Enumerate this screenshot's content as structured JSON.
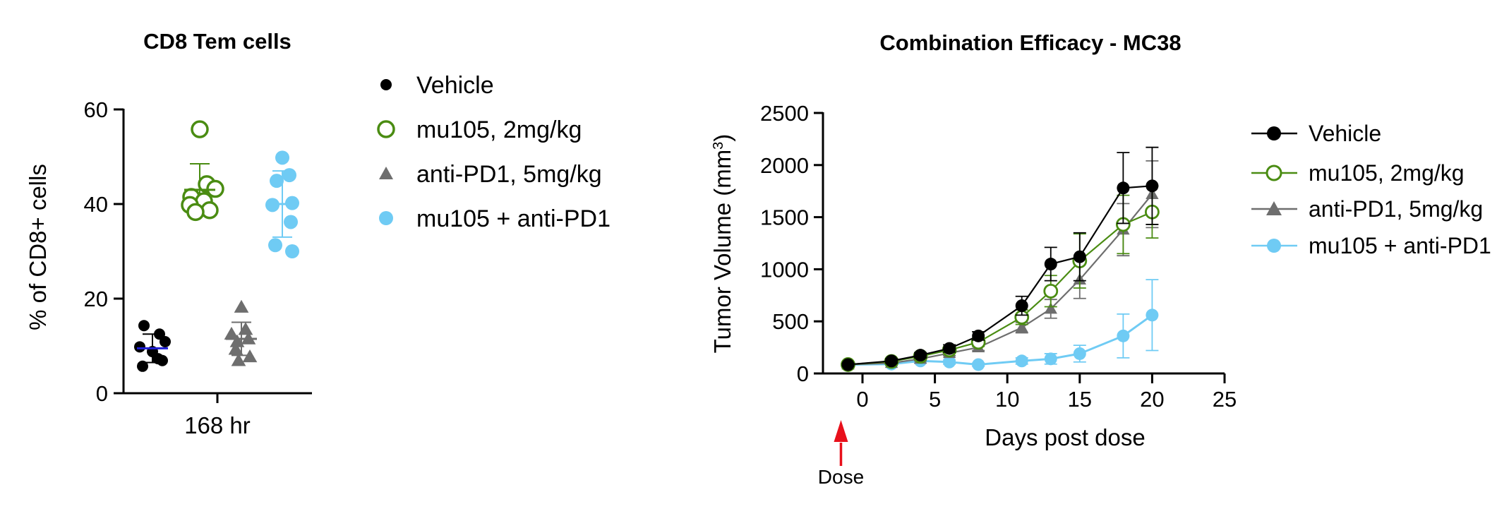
{
  "colors": {
    "vehicle": "#000000",
    "mu105": "#4a8c12",
    "antipd1": "#6e6e6e",
    "combo": "#6fcbf4",
    "mean_line_vehicle": "#1f1fd6",
    "dose_arrow": "#e8101b"
  },
  "chart_data": [
    {
      "type": "scatter",
      "title": "CD8 Tem cells",
      "ylabel": "% of CD8+ cells",
      "xlabel": "",
      "categories": [
        "168 hr"
      ],
      "ylim": [
        0,
        60
      ],
      "yticks": [
        "0",
        "20",
        "40",
        "60"
      ],
      "legend_position": "right",
      "series": [
        {
          "name": "Vehicle",
          "marker": "filled-circle",
          "mean": 9.5,
          "sd": 3,
          "values": [
            14.3,
            12.5,
            10.9,
            9.8,
            8.8,
            7.3,
            6.9,
            5.7
          ]
        },
        {
          "name": "mu105, 2mg/kg",
          "marker": "open-circle",
          "mean": 43,
          "sd": 5.5,
          "values": [
            55.8,
            44.2,
            43.2,
            41.5,
            40.6,
            39.8,
            38.7,
            38.3
          ]
        },
        {
          "name": "anti-PD1, 5mg/kg",
          "marker": "filled-triangle",
          "mean": 11.5,
          "sd": 3.5,
          "values": [
            18.2,
            13.5,
            12.5,
            11.5,
            10.9,
            9.3,
            7.7,
            6.9
          ]
        },
        {
          "name": "mu105 + anti-PD1",
          "marker": "filled-circle",
          "mean": 40,
          "sd": 7,
          "values": [
            49.8,
            46.1,
            44.9,
            40.2,
            39.8,
            36.2,
            31.3,
            30
          ]
        }
      ]
    },
    {
      "type": "line",
      "title": "Combination Efficacy - MC38",
      "xlabel": "Days post dose",
      "ylabel_main": "Tumor Volume (mm",
      "ylabel_sup": "3",
      "ylabel_end": ")",
      "xlim": [
        -2,
        25
      ],
      "ylim": [
        0,
        2500
      ],
      "xticks": [
        "0",
        "5",
        "10",
        "15",
        "20",
        "25"
      ],
      "yticks": [
        "0",
        "500",
        "1000",
        "1500",
        "2000",
        "2500"
      ],
      "legend_position": "right",
      "annotation": "Dose",
      "annotation_x": -1,
      "series": [
        {
          "name": "Vehicle",
          "marker": "filled-circle",
          "x": [
            -1,
            2,
            4,
            6,
            8,
            11,
            13,
            15,
            18,
            20
          ],
          "y": [
            85,
            120,
            175,
            240,
            360,
            650,
            1050,
            1120,
            1780,
            1800
          ],
          "err": [
            10,
            20,
            25,
            35,
            40,
            90,
            160,
            230,
            340,
            370
          ]
        },
        {
          "name": "mu105, 2mg/kg",
          "marker": "open-circle",
          "x": [
            -1,
            2,
            4,
            6,
            8,
            11,
            13,
            15,
            18,
            20
          ],
          "y": [
            85,
            115,
            165,
            225,
            300,
            540,
            790,
            1080,
            1430,
            1550
          ],
          "err": [
            10,
            20,
            25,
            30,
            40,
            70,
            150,
            260,
            280,
            250
          ]
        },
        {
          "name": "anti-PD1, 5mg/kg",
          "marker": "filled-triangle",
          "x": [
            -1,
            2,
            4,
            6,
            8,
            11,
            13,
            15,
            18,
            20
          ],
          "y": [
            85,
            100,
            140,
            195,
            250,
            440,
            620,
            900,
            1380,
            1720
          ],
          "err": [
            10,
            15,
            20,
            25,
            30,
            50,
            90,
            180,
            250,
            320
          ]
        },
        {
          "name": "mu105 + anti-PD1",
          "marker": "filled-circle",
          "x": [
            -1,
            2,
            4,
            6,
            8,
            11,
            13,
            15,
            18,
            20
          ],
          "y": [
            85,
            90,
            120,
            110,
            85,
            120,
            140,
            190,
            360,
            560
          ],
          "err": [
            10,
            15,
            20,
            20,
            15,
            30,
            50,
            80,
            210,
            340
          ]
        }
      ]
    }
  ]
}
